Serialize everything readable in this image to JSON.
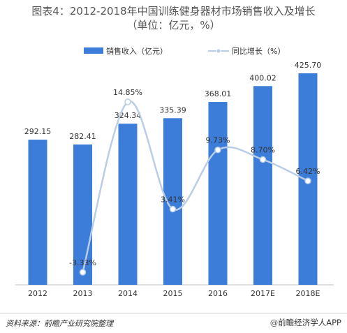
{
  "title": {
    "line1": "图表4：2012-2018年中国训练健身器材市场销售收入及增长",
    "line2": "（单位：亿元，%）"
  },
  "chart_data": {
    "type": "bar",
    "categories": [
      "2012",
      "2013",
      "2014",
      "2015",
      "2016",
      "2017E",
      "2018E"
    ],
    "series": [
      {
        "name": "销售收入（亿元）",
        "type": "bar",
        "color": "#3b7dd8",
        "values": [
          292.15,
          282.41,
          324.34,
          335.39,
          368.01,
          400.02,
          425.7
        ],
        "labels": [
          "292.15",
          "282.41",
          "324.34",
          "335.39",
          "368.01",
          "400.02",
          "425.70"
        ]
      },
      {
        "name": "同比增长（%）",
        "type": "line",
        "color": "#b9cde6",
        "values": [
          null,
          -3.33,
          14.85,
          3.41,
          9.73,
          8.7,
          6.42
        ],
        "labels": [
          "",
          "-3.33%",
          "14.85%",
          "3.41%",
          "9.73%",
          "8.70%",
          "6.42%"
        ]
      }
    ],
    "y_left_range": [
      0,
      450
    ],
    "y_right_range": [
      -5,
      16
    ],
    "legend_position": "top-center",
    "grid": false
  },
  "footer": {
    "source": "资料来源：前瞻产业研究院整理",
    "brand": "前瞻经济学人APP",
    "brand_prefix": "@"
  }
}
